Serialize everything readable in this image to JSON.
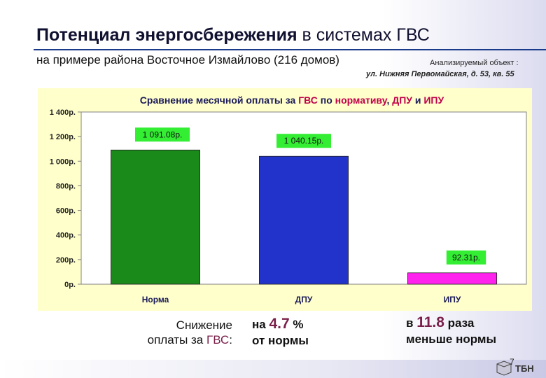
{
  "slide": {
    "title_bold": "Потенциал энергосбережения",
    "title_rest": " в системах ГВС",
    "subtitle": "на примере района Восточное Измайлово (216 домов)",
    "object_label": "Анализируемый объект :",
    "object_address": "ул. Нижняя Первомайская, д. 53, кв. 55",
    "page_number": "7",
    "logo_text": "ТБН"
  },
  "summary": {
    "left_line1": "Снижение",
    "left_line2_a": "оплаты за ",
    "left_line2_hl": "ГВС",
    "left_line2_b": ":",
    "mid_prefix": "на ",
    "mid_value": "4.7",
    "mid_suffix": " %",
    "mid_line2": "от нормы",
    "right_prefix": "в ",
    "right_value": "11.8",
    "right_suffix": " раза",
    "right_line2": "меньше нормы"
  },
  "chart_data": {
    "type": "bar",
    "title_parts": [
      {
        "text": "Сравнение месячной оплаты за ",
        "color": "#1a1a5a"
      },
      {
        "text": "ГВС",
        "color": "#c0004a"
      },
      {
        "text": " по ",
        "color": "#1a1a5a"
      },
      {
        "text": "нормативу",
        "color": "#c0004a"
      },
      {
        "text": ", ",
        "color": "#1a1a5a"
      },
      {
        "text": "ДПУ",
        "color": "#c0004a"
      },
      {
        "text": " и ",
        "color": "#1a1a5a"
      },
      {
        "text": "ИПУ",
        "color": "#c0004a"
      }
    ],
    "categories": [
      "Норма",
      "ДПУ",
      "ИПУ"
    ],
    "values": [
      1091.08,
      1040.15,
      92.31
    ],
    "value_labels": [
      "1 091.08р.",
      "1 040.15р.",
      "92.31р."
    ],
    "bar_colors": [
      "#1a8a1a",
      "#2233cc",
      "#ff22ee"
    ],
    "value_label_bg": "#33ee33",
    "ylim": [
      0,
      1400
    ],
    "yticks": [
      0,
      200,
      400,
      600,
      800,
      1000,
      1200,
      1400
    ],
    "ytick_labels": [
      "0р.",
      "200р.",
      "400р.",
      "600р.",
      "800р.",
      "1 000р.",
      "1 200р.",
      "1 400р."
    ],
    "grid": false
  }
}
